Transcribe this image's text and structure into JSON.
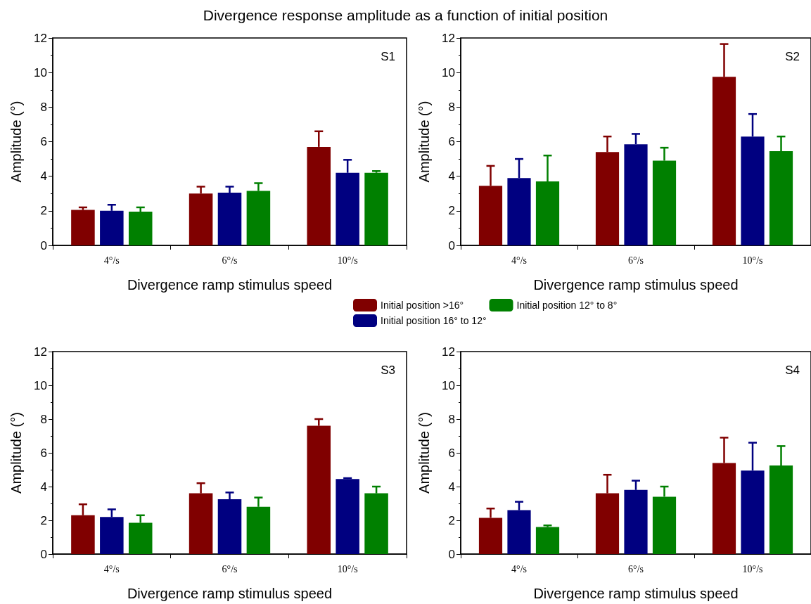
{
  "chart_data": [
    {
      "type": "bar",
      "title": "Divergence response amplitude as a function of initial position",
      "annotations": [
        "S1"
      ],
      "categories": [
        "4°/s",
        "6°/s",
        "10°/s"
      ],
      "xlabel": "Divergence ramp stimulus speed",
      "ylabel": "Amplitude (°)",
      "ylim": [
        0,
        12
      ],
      "yticks": [
        0,
        2,
        4,
        6,
        8,
        10,
        12
      ],
      "legend": "bottom",
      "series": [
        {
          "name": "Initial position >16°",
          "color": "#800000",
          "values": [
            2.05,
            3.0,
            5.7
          ],
          "errors": [
            [
              2.05,
              2.2
            ],
            [
              3.0,
              3.4
            ],
            [
              5.7,
              6.6
            ]
          ]
        },
        {
          "name": "Initial position 16° to 12°",
          "color": "#000080",
          "values": [
            2.0,
            3.05,
            4.2
          ],
          "errors": [
            [
              2.0,
              2.35
            ],
            [
              3.05,
              3.4
            ],
            [
              4.2,
              4.95
            ]
          ]
        },
        {
          "name": "Initial position 12° to 8°",
          "color": "#008000",
          "values": [
            1.95,
            3.15,
            4.2
          ],
          "errors": [
            [
              1.95,
              2.2
            ],
            [
              3.15,
              3.6
            ],
            [
              4.2,
              4.3
            ]
          ]
        }
      ]
    },
    {
      "type": "bar",
      "annotations": [
        "S2"
      ],
      "categories": [
        "4°/s",
        "6°/s",
        "10°/s"
      ],
      "xlabel": "Divergence ramp stimulus speed",
      "ylabel": "Amplitude (°)",
      "ylim": [
        0,
        12
      ],
      "yticks": [
        0,
        2,
        4,
        6,
        8,
        10,
        12
      ],
      "series": [
        {
          "color": "#800000",
          "values": [
            3.45,
            5.4,
            9.75
          ],
          "errors": [
            [
              3.45,
              4.6
            ],
            [
              5.4,
              6.3
            ],
            [
              9.75,
              11.65
            ]
          ]
        },
        {
          "color": "#000080",
          "values": [
            3.9,
            5.85,
            6.3
          ],
          "errors": [
            [
              3.9,
              5.0
            ],
            [
              5.85,
              6.45
            ],
            [
              6.3,
              7.6
            ]
          ]
        },
        {
          "color": "#008000",
          "values": [
            3.7,
            4.9,
            5.45
          ],
          "errors": [
            [
              3.7,
              5.2
            ],
            [
              4.9,
              5.65
            ],
            [
              5.45,
              6.3
            ]
          ]
        }
      ]
    },
    {
      "type": "bar",
      "annotations": [
        "S3"
      ],
      "categories": [
        "4°/s",
        "6°/s",
        "10°/s"
      ],
      "xlabel": "Divergence ramp stimulus speed",
      "ylabel": "Amplitude (°)",
      "ylim": [
        0,
        12
      ],
      "yticks": [
        0,
        2,
        4,
        6,
        8,
        10,
        12
      ],
      "series": [
        {
          "color": "#800000",
          "values": [
            2.3,
            3.6,
            7.6
          ],
          "errors": [
            [
              2.3,
              2.95
            ],
            [
              3.6,
              4.2
            ],
            [
              7.6,
              8.0
            ]
          ]
        },
        {
          "color": "#000080",
          "values": [
            2.2,
            3.25,
            4.45
          ],
          "errors": [
            [
              2.2,
              2.65
            ],
            [
              3.25,
              3.65
            ],
            [
              4.45,
              4.5
            ]
          ]
        },
        {
          "color": "#008000",
          "values": [
            1.85,
            2.8,
            3.6
          ],
          "errors": [
            [
              1.85,
              2.3
            ],
            [
              2.8,
              3.35
            ],
            [
              3.6,
              4.0
            ]
          ]
        }
      ]
    },
    {
      "type": "bar",
      "annotations": [
        "S4"
      ],
      "categories": [
        "4°/s",
        "6°/s",
        "10°/s"
      ],
      "xlabel": "Divergence ramp stimulus speed",
      "ylabel": "Amplitude (°)",
      "ylim": [
        0,
        12
      ],
      "yticks": [
        0,
        2,
        4,
        6,
        8,
        10,
        12
      ],
      "series": [
        {
          "color": "#800000",
          "values": [
            2.15,
            3.6,
            5.4
          ],
          "errors": [
            [
              2.15,
              2.7
            ],
            [
              3.6,
              4.7
            ],
            [
              5.4,
              6.9
            ]
          ]
        },
        {
          "color": "#000080",
          "values": [
            2.6,
            3.8,
            4.95
          ],
          "errors": [
            [
              2.6,
              3.1
            ],
            [
              3.8,
              4.35
            ],
            [
              4.95,
              6.6
            ]
          ]
        },
        {
          "color": "#008000",
          "values": [
            1.6,
            3.4,
            5.25
          ],
          "errors": [
            [
              1.6,
              1.7
            ],
            [
              3.4,
              4.0
            ],
            [
              5.25,
              6.4
            ]
          ]
        }
      ]
    }
  ]
}
